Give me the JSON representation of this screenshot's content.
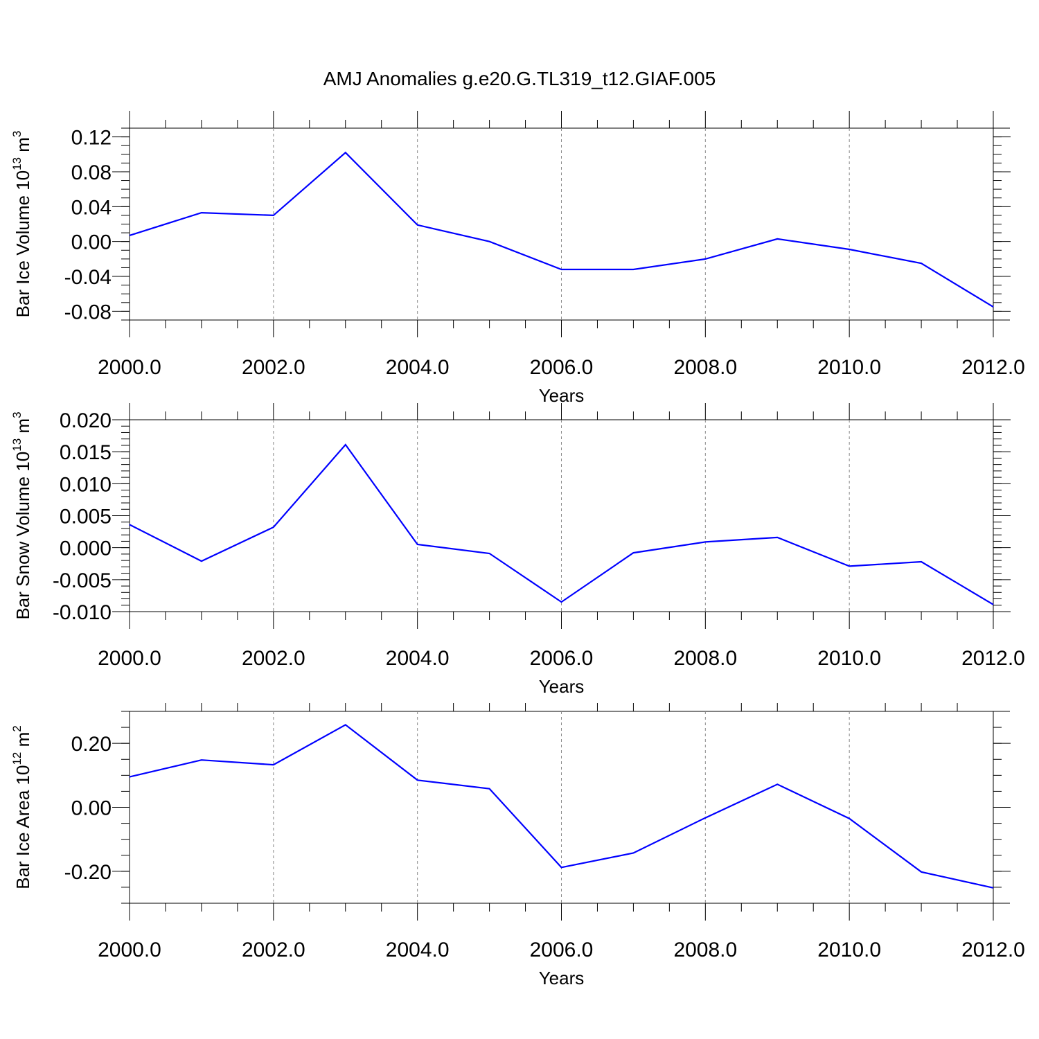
{
  "title": "AMJ Anomalies g.e20.G.TL319_t12.GIAF.005",
  "series_color": "#0000ff",
  "chart_data": [
    {
      "type": "line",
      "name": "ice-volume",
      "ylabel": "Bar Ice Volume 10",
      "ylabel_exp": "13",
      "ylabel_unit": " m",
      "ylabel_unit_exp": "3",
      "xlabel": "Years",
      "xlim": [
        2000,
        2012
      ],
      "ylim": [
        -0.09,
        0.13
      ],
      "ytick_values": [
        -0.08,
        -0.04,
        0.0,
        0.04,
        0.08,
        0.12
      ],
      "ytick_labels": [
        "-0.08",
        "-0.04",
        "0.00",
        "0.04",
        "0.08",
        "0.12"
      ],
      "yminor_step": 0.01,
      "xtick_values": [
        2000,
        2002,
        2004,
        2006,
        2008,
        2010,
        2012
      ],
      "xtick_labels": [
        "2000.0",
        "2002.0",
        "2004.0",
        "2006.0",
        "2008.0",
        "2010.0",
        "2012.0"
      ],
      "x": [
        2000,
        2001,
        2002,
        2003,
        2004,
        2005,
        2006,
        2007,
        2008,
        2009,
        2010,
        2011,
        2012
      ],
      "values": [
        0.007,
        0.033,
        0.03,
        0.102,
        0.019,
        0.0,
        -0.032,
        -0.032,
        -0.02,
        0.003,
        -0.009,
        -0.025,
        -0.075
      ]
    },
    {
      "type": "line",
      "name": "snow-volume",
      "ylabel": "Bar Snow Volume 10",
      "ylabel_exp": "13",
      "ylabel_unit": " m",
      "ylabel_unit_exp": "3",
      "xlabel": "Years",
      "xlim": [
        2000,
        2012
      ],
      "ylim": [
        -0.01,
        0.02
      ],
      "ytick_values": [
        -0.01,
        -0.005,
        0.0,
        0.005,
        0.01,
        0.015,
        0.02
      ],
      "ytick_labels": [
        "-0.010",
        "-0.005",
        "0.000",
        "0.005",
        "0.010",
        "0.015",
        "0.020"
      ],
      "yminor_step": 0.001,
      "xtick_values": [
        2000,
        2002,
        2004,
        2006,
        2008,
        2010,
        2012
      ],
      "xtick_labels": [
        "2000.0",
        "2002.0",
        "2004.0",
        "2006.0",
        "2008.0",
        "2010.0",
        "2012.0"
      ],
      "x": [
        2000,
        2001,
        2002,
        2003,
        2004,
        2005,
        2006,
        2007,
        2008,
        2009,
        2010,
        2011,
        2012
      ],
      "values": [
        0.0036,
        -0.0021,
        0.0032,
        0.0161,
        0.0005,
        -0.0009,
        -0.0085,
        -0.0008,
        0.0009,
        0.0016,
        -0.0029,
        -0.0022,
        -0.0089
      ]
    },
    {
      "type": "line",
      "name": "ice-area",
      "ylabel": "Bar Ice Area 10",
      "ylabel_exp": "12",
      "ylabel_unit": " m",
      "ylabel_unit_exp": "2",
      "xlabel": "Years",
      "xlim": [
        2000,
        2012
      ],
      "ylim": [
        -0.3,
        0.3
      ],
      "ytick_values": [
        -0.2,
        0.0,
        0.2
      ],
      "ytick_labels": [
        "-0.20",
        "0.00",
        "0.20"
      ],
      "yminor_step": 0.05,
      "xtick_values": [
        2000,
        2002,
        2004,
        2006,
        2008,
        2010,
        2012
      ],
      "xtick_labels": [
        "2000.0",
        "2002.0",
        "2004.0",
        "2006.0",
        "2008.0",
        "2010.0",
        "2012.0"
      ],
      "x": [
        2000,
        2001,
        2002,
        2003,
        2004,
        2005,
        2006,
        2007,
        2008,
        2009,
        2010,
        2011,
        2012
      ],
      "values": [
        0.095,
        0.148,
        0.133,
        0.258,
        0.085,
        0.058,
        -0.188,
        -0.143,
        -0.033,
        0.072,
        -0.035,
        -0.202,
        -0.252
      ]
    }
  ]
}
